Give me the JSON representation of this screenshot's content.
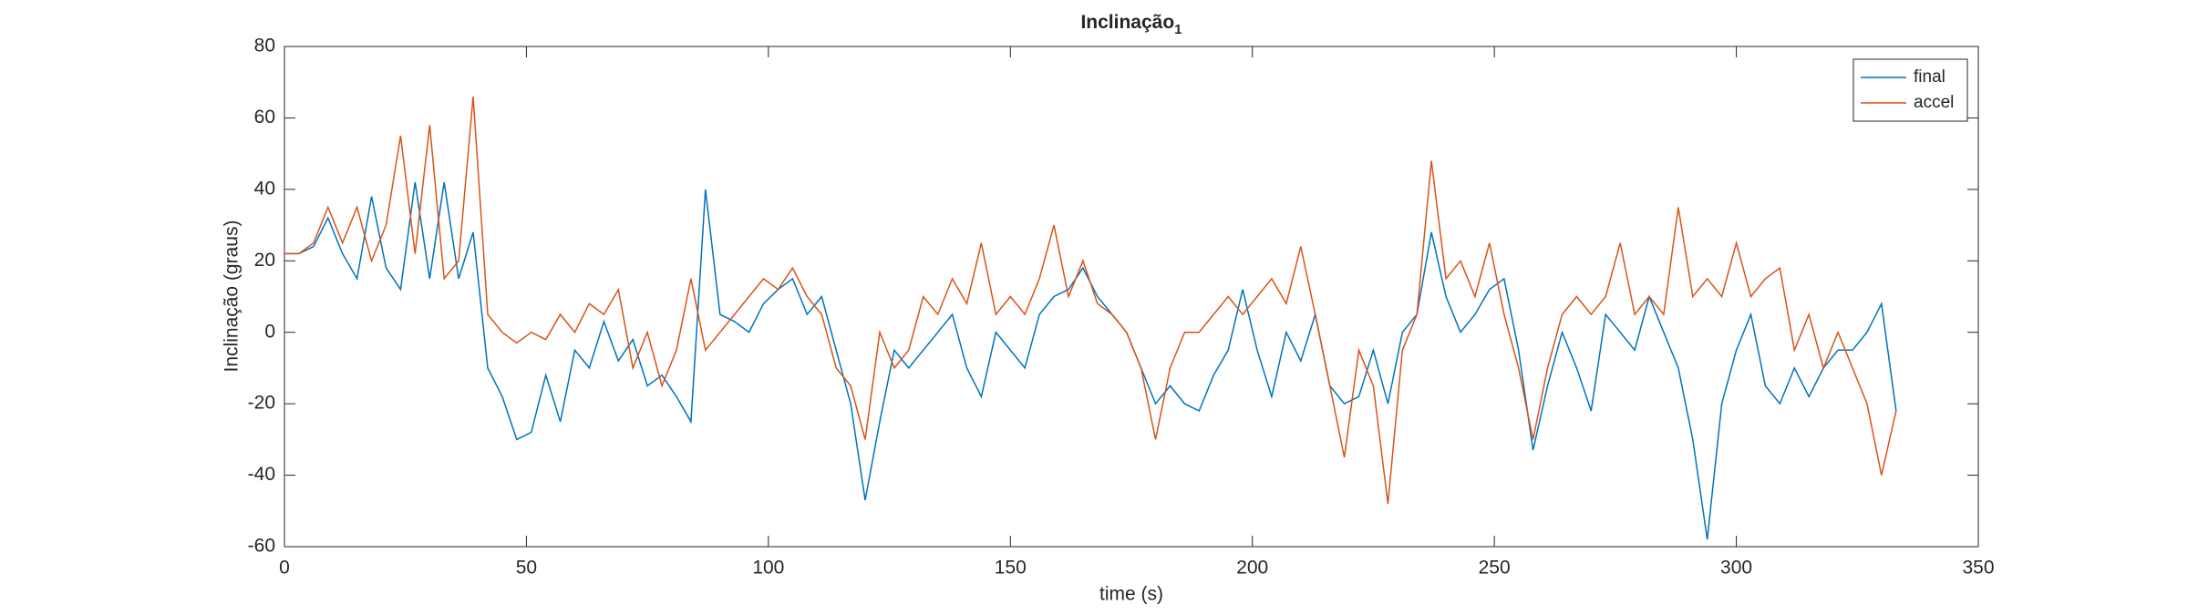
{
  "chart_data": {
    "type": "line",
    "title": "Inclinação",
    "title_subscript": "1",
    "xlabel": "time (s)",
    "ylabel": "Inclinação (graus)",
    "x": [
      0,
      3,
      6,
      9,
      12,
      15,
      18,
      21,
      24,
      27,
      30,
      33,
      36,
      39,
      42,
      45,
      48,
      51,
      54,
      57,
      60,
      63,
      66,
      69,
      72,
      75,
      78,
      81,
      84,
      87,
      90,
      93,
      96,
      99,
      102,
      105,
      108,
      111,
      114,
      117,
      120,
      123,
      126,
      129,
      132,
      135,
      138,
      141,
      144,
      147,
      150,
      153,
      156,
      159,
      162,
      165,
      168,
      171,
      174,
      177,
      180,
      183,
      186,
      189,
      192,
      195,
      198,
      201,
      204,
      207,
      210,
      213,
      216,
      219,
      222,
      225,
      228,
      231,
      234,
      237,
      240,
      243,
      246,
      249,
      252,
      255,
      258,
      261,
      264,
      267,
      270,
      273,
      276,
      279,
      282,
      285,
      288,
      291,
      294,
      297,
      300,
      303,
      306,
      309,
      312,
      315,
      318,
      321,
      324,
      327,
      330,
      333
    ],
    "series": [
      {
        "name": "final",
        "color": "#0072BD",
        "values": [
          22,
          22,
          24,
          32,
          22,
          15,
          38,
          18,
          12,
          42,
          15,
          42,
          15,
          28,
          -10,
          -18,
          -30,
          -28,
          -12,
          -25,
          -5,
          -10,
          3,
          -8,
          -2,
          -15,
          -12,
          -18,
          -25,
          40,
          5,
          3,
          0,
          8,
          12,
          15,
          5,
          10,
          -5,
          -20,
          -47,
          -25,
          -5,
          -10,
          -5,
          0,
          5,
          -10,
          -18,
          0,
          -5,
          -10,
          5,
          10,
          12,
          18,
          10,
          5,
          0,
          -10,
          -20,
          -15,
          -20,
          -22,
          -12,
          -5,
          12,
          -5,
          -18,
          0,
          -8,
          5,
          -15,
          -20,
          -18,
          -5,
          -20,
          0,
          5,
          28,
          10,
          0,
          5,
          12,
          15,
          -5,
          -33,
          -15,
          0,
          -10,
          -22,
          5,
          0,
          -5,
          10,
          0,
          -10,
          -30,
          -58,
          -20,
          -5,
          5,
          -15,
          -20,
          -10,
          -18,
          -10,
          -5,
          -5,
          0,
          8,
          -22
        ]
      },
      {
        "name": "accel",
        "color": "#D95319",
        "values": [
          22,
          22,
          25,
          35,
          25,
          35,
          20,
          30,
          55,
          22,
          58,
          15,
          20,
          66,
          5,
          0,
          -3,
          0,
          -2,
          5,
          0,
          8,
          5,
          12,
          -10,
          0,
          -15,
          -5,
          15,
          -5,
          0,
          5,
          10,
          15,
          12,
          18,
          10,
          5,
          -10,
          -15,
          -30,
          0,
          -10,
          -5,
          10,
          5,
          15,
          8,
          25,
          5,
          10,
          5,
          15,
          30,
          10,
          20,
          8,
          5,
          0,
          -10,
          -30,
          -10,
          0,
          0,
          5,
          10,
          5,
          10,
          15,
          8,
          24,
          5,
          -15,
          -35,
          -5,
          -15,
          -48,
          -5,
          5,
          48,
          15,
          20,
          10,
          25,
          5,
          -10,
          -30,
          -10,
          5,
          10,
          5,
          10,
          25,
          5,
          10,
          5,
          35,
          10,
          15,
          10,
          25,
          10,
          15,
          18,
          -5,
          5,
          -10,
          0,
          -10,
          -20,
          -40,
          -22
        ]
      }
    ],
    "xlim": [
      0,
      350
    ],
    "xticks": [
      0,
      50,
      100,
      150,
      200,
      250,
      300,
      350
    ],
    "ylim": [
      -60,
      80
    ],
    "yticks": [
      -60,
      -40,
      -20,
      0,
      20,
      40,
      60,
      80
    ],
    "grid": false,
    "legend": "northeast"
  }
}
